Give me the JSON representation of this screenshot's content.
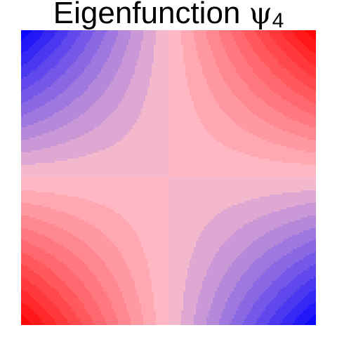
{
  "title": {
    "text": "Eigenfunction ",
    "symbol": "ψ",
    "subscript": "4"
  },
  "chart_data": {
    "type": "heatmap",
    "title": "Eigenfunction ψ4",
    "xlim": [
      -1,
      1
    ],
    "ylim": [
      -1,
      1
    ],
    "function": "f(x,y) = x*y",
    "value_range": [
      -1,
      1
    ],
    "grid_steps": 24,
    "contour_levels": 24,
    "colorscale": {
      "low": "#0000ff",
      "mid": "#ffc0cb",
      "high": "#ff0000"
    },
    "axes_visible": false,
    "legend": "none",
    "grid": false
  }
}
